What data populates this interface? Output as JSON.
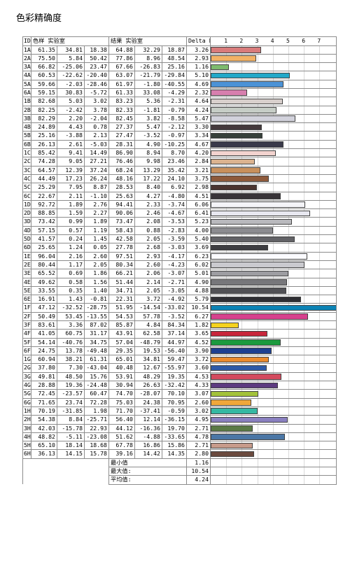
{
  "title": "色彩精确度",
  "header": {
    "id": "ID",
    "swatch": "色样",
    "lab_ref": "实验室",
    "result": "结果",
    "lab_res": "实验室",
    "delta": "Delta E",
    "ticks": [
      "1",
      "2",
      "3",
      "4",
      "5",
      "6",
      "7"
    ]
  },
  "chart_data": {
    "type": "bar",
    "xlabel": "Delta E",
    "xlim": [
      0,
      8
    ],
    "rows": [
      {
        "id": "1A",
        "ref": [
          "61.35",
          "34.81",
          "18.38"
        ],
        "res": [
          "64.88",
          "32.29",
          "18.87"
        ],
        "de": 3.26,
        "color": "#d97b7b"
      },
      {
        "id": "2A",
        "ref": [
          "75.50",
          "5.84",
          "50.42"
        ],
        "res": [
          "77.86",
          "8.96",
          "48.54"
        ],
        "de": 2.93,
        "color": "#f2b266"
      },
      {
        "id": "3A",
        "ref": [
          "66.82",
          "-25.06",
          "23.47"
        ],
        "res": [
          "67.66",
          "-26.83",
          "25.16"
        ],
        "de": 1.16,
        "color": "#7dba6e"
      },
      {
        "id": "4A",
        "ref": [
          "60.53",
          "-22.62",
          "-20.40"
        ],
        "res": [
          "63.07",
          "-21.79",
          "-29.84"
        ],
        "de": 5.1,
        "color": "#22a8c8"
      },
      {
        "id": "5A",
        "ref": [
          "59.66",
          "-2.03",
          "-28.46"
        ],
        "res": [
          "61.97",
          "-1.80",
          "-40.55"
        ],
        "de": 4.69,
        "color": "#4b92d6"
      },
      {
        "id": "6A",
        "ref": [
          "59.15",
          "30.83",
          "-5.72"
        ],
        "res": [
          "61.33",
          "33.08",
          "-4.29"
        ],
        "de": 2.32,
        "color": "#d77fae"
      },
      {
        "id": "1B",
        "ref": [
          "82.68",
          "5.03",
          "3.02"
        ],
        "res": [
          "83.23",
          "5.36",
          "-2.31"
        ],
        "de": 4.64,
        "color": "#d8cfcc"
      },
      {
        "id": "2B",
        "ref": [
          "82.25",
          "-2.42",
          "3.78"
        ],
        "res": [
          "82.33",
          "-1.81",
          "-0.79"
        ],
        "de": 4.24,
        "color": "#c6cdc6"
      },
      {
        "id": "3B",
        "ref": [
          "82.29",
          "2.20",
          "-2.04"
        ],
        "res": [
          "82.45",
          "3.82",
          "-8.58"
        ],
        "de": 5.47,
        "color": "#d2d2dc"
      },
      {
        "id": "4B",
        "ref": [
          "24.89",
          "4.43",
          "0.78"
        ],
        "res": [
          "27.37",
          "5.47",
          "-2.12"
        ],
        "de": 3.3,
        "color": "#44393b"
      },
      {
        "id": "5B",
        "ref": [
          "25.16",
          "-3.88",
          "2.13"
        ],
        "res": [
          "27.47",
          "-3.52",
          "-0.97"
        ],
        "de": 3.34,
        "color": "#36403a"
      },
      {
        "id": "6B",
        "ref": [
          "26.13",
          "2.61",
          "-5.03"
        ],
        "res": [
          "28.31",
          "4.90",
          "-10.25"
        ],
        "de": 4.67,
        "color": "#3a3a4a"
      },
      {
        "id": "1C",
        "ref": [
          "85.42",
          "9.41",
          "14.49"
        ],
        "res": [
          "86.90",
          "8.94",
          "8.70"
        ],
        "de": 4.2,
        "color": "#f3d3cf"
      },
      {
        "id": "2C",
        "ref": [
          "74.28",
          "9.05",
          "27.21"
        ],
        "res": [
          "76.46",
          "9.98",
          "23.46"
        ],
        "de": 2.84,
        "color": "#dbb38f"
      },
      {
        "id": "3C",
        "ref": [
          "64.57",
          "12.39",
          "37.24"
        ],
        "res": [
          "68.24",
          "13.29",
          "35.42"
        ],
        "de": 3.21,
        "color": "#c8905c"
      },
      {
        "id": "4C",
        "ref": [
          "44.49",
          "17.23",
          "26.24"
        ],
        "res": [
          "48.16",
          "17.22",
          "24.10"
        ],
        "de": 3.75,
        "color": "#8e5a3b"
      },
      {
        "id": "5C",
        "ref": [
          "25.29",
          "7.95",
          "8.87"
        ],
        "res": [
          "28.53",
          "8.40",
          "6.92"
        ],
        "de": 2.98,
        "color": "#4a3430"
      },
      {
        "id": "6C",
        "ref": [
          "22.67",
          "2.11",
          "-1.10"
        ],
        "res": [
          "25.63",
          "4.27",
          "-4.80"
        ],
        "de": 4.51,
        "color": "#383438"
      },
      {
        "id": "1D",
        "ref": [
          "92.72",
          "1.89",
          "2.76"
        ],
        "res": [
          "94.41",
          "2.33",
          "-3.74"
        ],
        "de": 6.06,
        "color": "#f4f4f8"
      },
      {
        "id": "2D",
        "ref": [
          "88.85",
          "1.59",
          "2.27"
        ],
        "res": [
          "90.06",
          "2.46",
          "-4.67"
        ],
        "de": 6.41,
        "color": "#e8e8f0"
      },
      {
        "id": "3D",
        "ref": [
          "73.42",
          "0.99",
          "1.89"
        ],
        "res": [
          "73.47",
          "2.08",
          "-3.53"
        ],
        "de": 5.23,
        "color": "#b9b9bd"
      },
      {
        "id": "4D",
        "ref": [
          "57.15",
          "0.57",
          "1.19"
        ],
        "res": [
          "58.43",
          "0.88",
          "-2.83"
        ],
        "de": 4.0,
        "color": "#8c8c90"
      },
      {
        "id": "5D",
        "ref": [
          "41.57",
          "0.24",
          "1.45"
        ],
        "res": [
          "42.58",
          "2.05",
          "-3.59"
        ],
        "de": 5.4,
        "color": "#626266"
      },
      {
        "id": "6D",
        "ref": [
          "25.65",
          "1.24",
          "0.05"
        ],
        "res": [
          "27.78",
          "2.68",
          "-3.03"
        ],
        "de": 3.69,
        "color": "#3d3d41"
      },
      {
        "id": "1E",
        "ref": [
          "96.04",
          "2.16",
          "2.60"
        ],
        "res": [
          "97.51",
          "2.93",
          "-4.17"
        ],
        "de": 6.23,
        "color": "#fbfbff"
      },
      {
        "id": "2E",
        "ref": [
          "80.44",
          "1.17",
          "2.05"
        ],
        "res": [
          "80.34",
          "2.60",
          "-4.23"
        ],
        "de": 6.02,
        "color": "#cacacf"
      },
      {
        "id": "3E",
        "ref": [
          "65.52",
          "0.69",
          "1.86"
        ],
        "res": [
          "66.21",
          "2.06",
          "-3.07"
        ],
        "de": 5.01,
        "color": "#9d9da1"
      },
      {
        "id": "4E",
        "ref": [
          "49.62",
          "0.58",
          "1.56"
        ],
        "res": [
          "51.44",
          "2.14",
          "-2.71"
        ],
        "de": 4.9,
        "color": "#77777b"
      },
      {
        "id": "5E",
        "ref": [
          "33.55",
          "0.35",
          "1.40"
        ],
        "res": [
          "34.71",
          "2.05",
          "-3.05"
        ],
        "de": 4.88,
        "color": "#515155"
      },
      {
        "id": "6E",
        "ref": [
          "16.91",
          "1.43",
          "-0.81"
        ],
        "res": [
          "22.31",
          "3.72",
          "-4.92"
        ],
        "de": 5.79,
        "color": "#2e2e33"
      },
      {
        "id": "1F",
        "ref": [
          "47.12",
          "-32.52",
          "-28.75"
        ],
        "res": [
          "51.95",
          "-14.54",
          "-33.02"
        ],
        "de": 10.54,
        "color": "#0c83b5"
      },
      {
        "id": "2F",
        "ref": [
          "50.49",
          "53.45",
          "-13.55"
        ],
        "res": [
          "54.53",
          "57.78",
          "-3.52"
        ],
        "de": 6.27,
        "color": "#d6418d"
      },
      {
        "id": "3F",
        "ref": [
          "83.61",
          "3.36",
          "87.02"
        ],
        "res": [
          "85.87",
          "4.84",
          "84.34"
        ],
        "de": 1.82,
        "color": "#f5d21e"
      },
      {
        "id": "4F",
        "ref": [
          "41.05",
          "60.75",
          "31.17"
        ],
        "res": [
          "43.91",
          "62.58",
          "37.14"
        ],
        "de": 3.65,
        "color": "#c8263b"
      },
      {
        "id": "5F",
        "ref": [
          "54.14",
          "-40.76",
          "34.75"
        ],
        "res": [
          "57.04",
          "-48.79",
          "44.97"
        ],
        "de": 4.52,
        "color": "#1b9a3e"
      },
      {
        "id": "6F",
        "ref": [
          "24.75",
          "13.78",
          "-49.48"
        ],
        "res": [
          "29.35",
          "19.53",
          "-56.40"
        ],
        "de": 3.9,
        "color": "#1d3f91"
      },
      {
        "id": "1G",
        "ref": [
          "60.94",
          "38.21",
          "61.31"
        ],
        "res": [
          "65.01",
          "34.81",
          "59.47"
        ],
        "de": 3.72,
        "color": "#ea8a2e"
      },
      {
        "id": "2G",
        "ref": [
          "37.80",
          "7.30",
          "-43.04"
        ],
        "res": [
          "40.48",
          "12.67",
          "-55.97"
        ],
        "de": 3.6,
        "color": "#2d5aa8"
      },
      {
        "id": "3G",
        "ref": [
          "49.81",
          "48.50",
          "15.76"
        ],
        "res": [
          "53.91",
          "48.29",
          "19.35"
        ],
        "de": 4.53,
        "color": "#d34a5e"
      },
      {
        "id": "4G",
        "ref": [
          "28.88",
          "19.36",
          "-24.48"
        ],
        "res": [
          "30.94",
          "26.63",
          "-32.42"
        ],
        "de": 4.33,
        "color": "#5d3b80"
      },
      {
        "id": "5G",
        "ref": [
          "72.45",
          "-23.57",
          "60.47"
        ],
        "res": [
          "74.70",
          "-28.07",
          "70.10"
        ],
        "de": 3.07,
        "color": "#a3c23a"
      },
      {
        "id": "6G",
        "ref": [
          "71.65",
          "23.74",
          "72.28"
        ],
        "res": [
          "75.03",
          "24.38",
          "70.95"
        ],
        "de": 2.6,
        "color": "#f0a73a"
      },
      {
        "id": "1H",
        "ref": [
          "70.19",
          "-31.85",
          "1.98"
        ],
        "res": [
          "71.70",
          "-37.41",
          "-0.59"
        ],
        "de": 3.02,
        "color": "#35b8a2"
      },
      {
        "id": "2H",
        "ref": [
          "54.38",
          "8.84",
          "-25.71"
        ],
        "res": [
          "56.40",
          "12.14",
          "-36.15"
        ],
        "de": 4.95,
        "color": "#8a80c0"
      },
      {
        "id": "3H",
        "ref": [
          "42.03",
          "-15.78",
          "22.93"
        ],
        "res": [
          "44.12",
          "-16.36",
          "19.70"
        ],
        "de": 2.71,
        "color": "#5b7a46"
      },
      {
        "id": "4H",
        "ref": [
          "48.82",
          "-5.11",
          "-23.08"
        ],
        "res": [
          "51.62",
          "-4.88",
          "-33.65"
        ],
        "de": 4.78,
        "color": "#4b76a5"
      },
      {
        "id": "5H",
        "ref": [
          "65.10",
          "18.14",
          "18.68"
        ],
        "res": [
          "67.78",
          "16.86",
          "15.86"
        ],
        "de": 2.71,
        "color": "#c79b8b"
      },
      {
        "id": "6H",
        "ref": [
          "36.13",
          "14.15",
          "15.78"
        ],
        "res": [
          "39.16",
          "14.42",
          "14.35"
        ],
        "de": 2.8,
        "color": "#6b4a3e"
      }
    ]
  },
  "summary": [
    {
      "label": "最小值",
      "value": "1.16"
    },
    {
      "label": "最大值:",
      "value": "10.54"
    },
    {
      "label": "平均值:",
      "value": "4.24"
    }
  ]
}
